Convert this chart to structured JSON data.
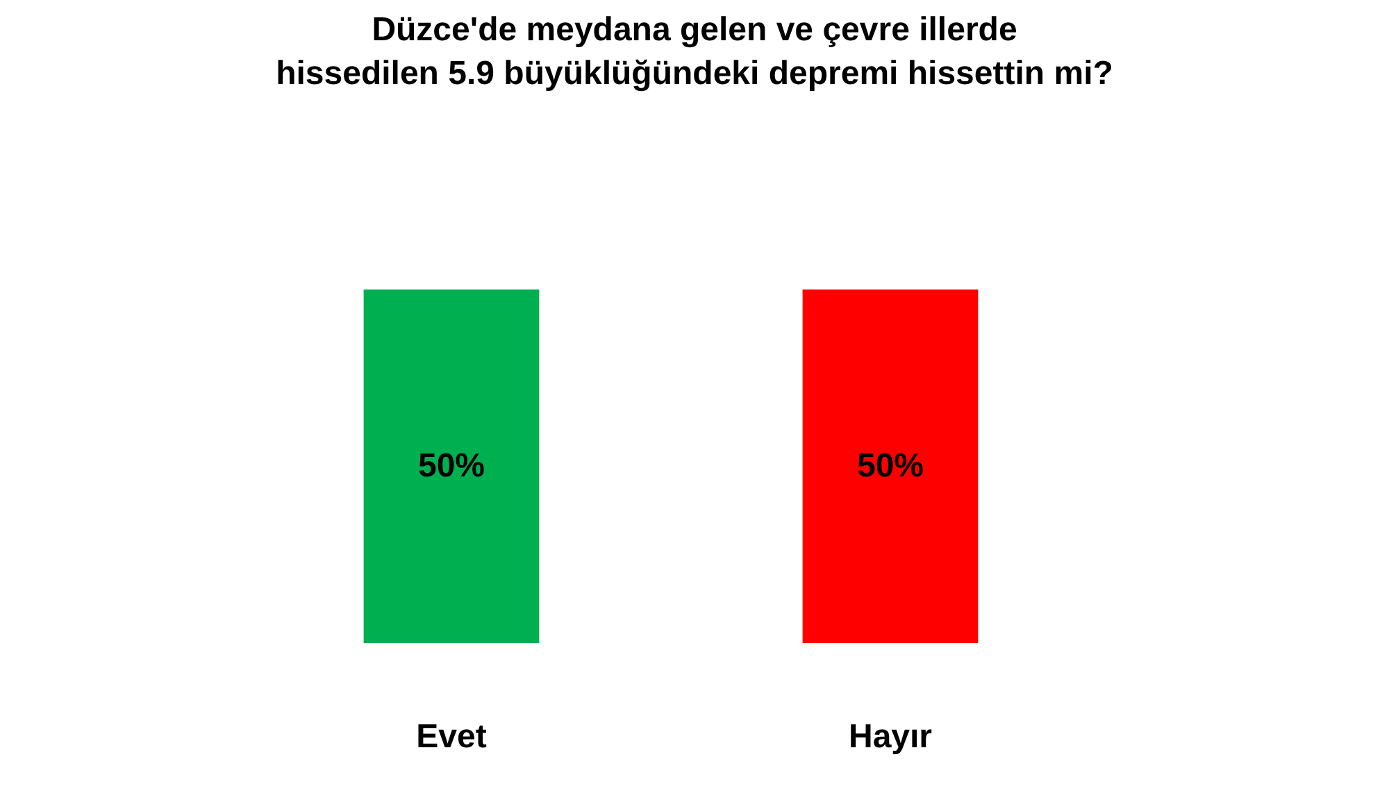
{
  "chart_data": {
    "type": "bar",
    "title": "Düzce'de meydana gelen ve çevre illerde\nhissedilen 5.9 büyüklüğündeki depremi hissettin mi?",
    "categories": [
      "Evet",
      "Hayır"
    ],
    "values": [
      50,
      50
    ],
    "colors": [
      "#00b050",
      "#ff0000"
    ],
    "value_labels": [
      "50%",
      "50%"
    ]
  }
}
